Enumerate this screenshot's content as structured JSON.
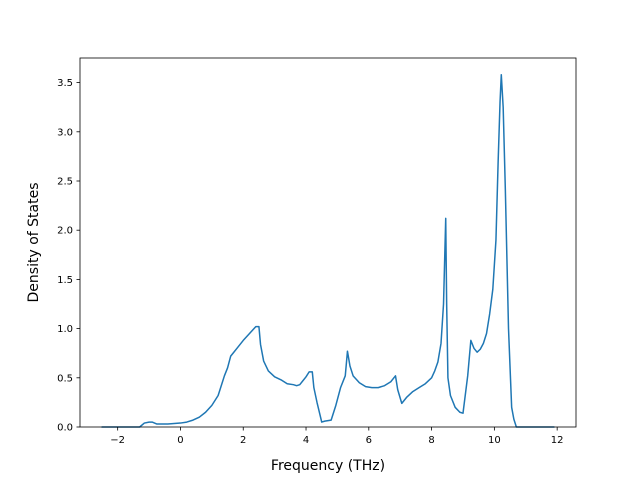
{
  "chart_data": {
    "type": "line",
    "title": "",
    "xlabel": "Frequency (THz)",
    "ylabel": "Density of States",
    "xlim": [
      -3.2,
      12.6
    ],
    "ylim": [
      0.0,
      3.75
    ],
    "x_ticks": [
      -2,
      0,
      2,
      4,
      6,
      8,
      10,
      12
    ],
    "x_tick_labels": [
      "−2",
      "0",
      "2",
      "4",
      "6",
      "8",
      "10",
      "12"
    ],
    "y_ticks": [
      0.0,
      0.5,
      1.0,
      1.5,
      2.0,
      2.5,
      3.0,
      3.5
    ],
    "y_tick_labels": [
      "0.0",
      "0.5",
      "1.0",
      "1.5",
      "2.0",
      "2.5",
      "3.0",
      "3.5"
    ],
    "grid": false,
    "legend": "none",
    "line_color": "#1f77b4",
    "series": [
      {
        "x": [
          -2.5,
          -1.3,
          -1.15,
          -1.0,
          -0.9,
          -0.75,
          -0.6,
          -0.4,
          -0.2,
          0.0,
          0.2,
          0.4,
          0.6,
          0.8,
          1.0,
          1.2,
          1.4,
          1.5,
          1.6,
          1.7,
          1.8,
          2.0,
          2.2,
          2.4,
          2.5,
          2.55,
          2.65,
          2.8,
          3.0,
          3.2,
          3.4,
          3.6,
          3.7,
          3.8,
          3.9,
          4.0,
          4.1,
          4.2,
          4.25,
          4.35,
          4.5,
          4.6,
          4.8,
          4.95,
          5.1,
          5.25,
          5.32,
          5.4,
          5.5,
          5.7,
          5.9,
          6.1,
          6.3,
          6.5,
          6.7,
          6.85,
          6.92,
          7.05,
          7.2,
          7.4,
          7.6,
          7.8,
          8.0,
          8.1,
          8.2,
          8.3,
          8.38,
          8.45,
          8.48,
          8.52,
          8.6,
          8.75,
          8.9,
          9.0,
          9.15,
          9.25,
          9.35,
          9.45,
          9.55,
          9.65,
          9.75,
          9.85,
          9.95,
          10.05,
          10.12,
          10.18,
          10.22,
          10.28,
          10.35,
          10.45,
          10.55,
          10.62,
          10.7,
          10.8,
          11.9
        ],
        "y": [
          0.0,
          0.0,
          0.04,
          0.05,
          0.05,
          0.03,
          0.03,
          0.03,
          0.035,
          0.04,
          0.05,
          0.07,
          0.1,
          0.15,
          0.22,
          0.32,
          0.52,
          0.6,
          0.72,
          0.76,
          0.8,
          0.88,
          0.95,
          1.02,
          1.02,
          0.84,
          0.67,
          0.57,
          0.51,
          0.48,
          0.44,
          0.43,
          0.42,
          0.43,
          0.47,
          0.51,
          0.56,
          0.56,
          0.4,
          0.25,
          0.05,
          0.06,
          0.07,
          0.22,
          0.4,
          0.52,
          0.77,
          0.62,
          0.52,
          0.45,
          0.41,
          0.4,
          0.4,
          0.42,
          0.46,
          0.52,
          0.38,
          0.24,
          0.3,
          0.36,
          0.4,
          0.44,
          0.5,
          0.57,
          0.66,
          0.85,
          1.25,
          2.12,
          1.25,
          0.5,
          0.32,
          0.2,
          0.15,
          0.14,
          0.52,
          0.88,
          0.8,
          0.76,
          0.79,
          0.85,
          0.95,
          1.15,
          1.4,
          1.9,
          2.7,
          3.3,
          3.58,
          3.25,
          2.4,
          1.0,
          0.2,
          0.08,
          0.0,
          0.0,
          0.0
        ]
      }
    ]
  }
}
